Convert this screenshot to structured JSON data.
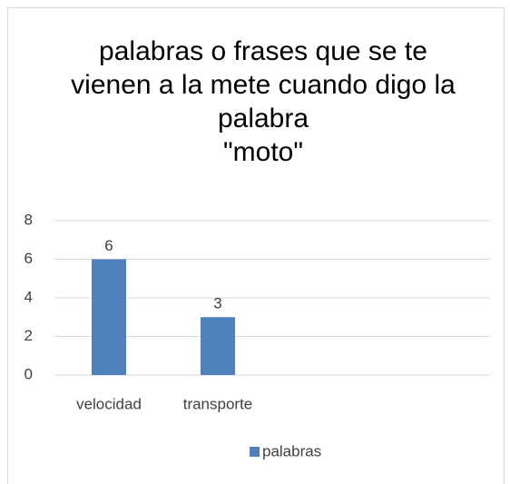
{
  "chart_data": {
    "type": "bar",
    "title": "palabras o frases que se te vienen a la mete cuando digo la palabra\n\"moto\"",
    "categories": [
      "velocidad",
      "transporte",
      null,
      null
    ],
    "series": [
      {
        "name": "palabras",
        "color": "#4f81bd",
        "values": [
          6,
          3,
          null,
          null
        ]
      }
    ],
    "ylim": [
      0,
      8
    ],
    "yticks": [
      0,
      2,
      4,
      6,
      8
    ],
    "grid": true,
    "legend": "bottom",
    "data_labels": true
  }
}
